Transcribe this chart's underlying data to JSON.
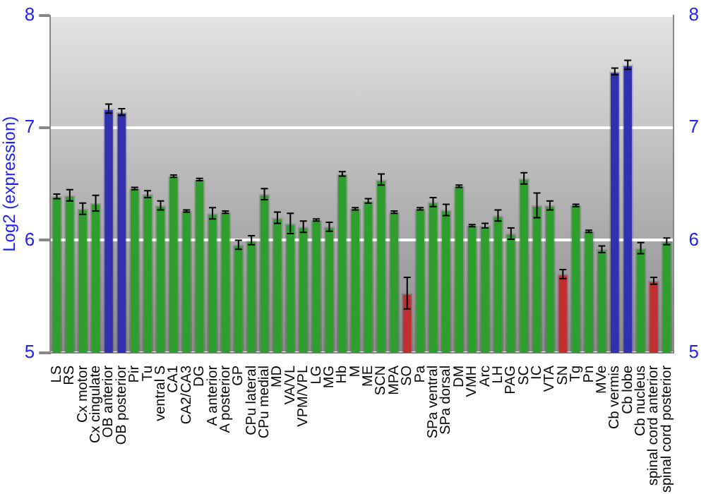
{
  "chart_data": {
    "type": "bar",
    "ylabel": "Log2 (expression)",
    "categories": [
      "LS",
      "RS",
      "Cx motor",
      "Cx cingulate",
      "OB anterior",
      "OB posterior",
      "Pir",
      "Tu",
      "ventral S",
      "CA1",
      "CA2/CA3",
      "DG",
      "A anterior",
      "A posterior",
      "GP",
      "CPu lateral",
      "CPu medial",
      "MD",
      "VA/VL",
      "VPM/VPL",
      "LG",
      "MG",
      "Hb",
      "M",
      "ME",
      "SCN",
      "MPA",
      "SO",
      "Pa",
      "SPa ventral",
      "SPa dorsal",
      "DM",
      "VMH",
      "Arc",
      "LH",
      "PAG",
      "SC",
      "IC",
      "VTA",
      "SN",
      "Tg",
      "Pn",
      "MVe",
      "Cb vermis",
      "Cb lobe",
      "Cb nucleus",
      "spinal cord anterior",
      "spinal cord posterior"
    ],
    "values": [
      6.39,
      6.4,
      6.28,
      6.33,
      7.17,
      7.14,
      6.46,
      6.41,
      6.31,
      6.57,
      6.26,
      6.54,
      6.24,
      6.25,
      5.96,
      6.0,
      6.41,
      6.2,
      6.15,
      6.12,
      6.18,
      6.12,
      6.59,
      6.28,
      6.35,
      6.54,
      6.25,
      5.53,
      6.28,
      6.34,
      6.27,
      6.48,
      6.13,
      6.13,
      6.22,
      6.06,
      6.55,
      6.31,
      6.31,
      5.7,
      6.31,
      6.08,
      5.92,
      7.5,
      7.56,
      5.93,
      5.64,
      5.99
    ],
    "errors": [
      0.02,
      0.05,
      0.05,
      0.07,
      0.04,
      0.03,
      0.01,
      0.03,
      0.04,
      0.01,
      0.01,
      0.01,
      0.05,
      0.01,
      0.04,
      0.04,
      0.05,
      0.05,
      0.09,
      0.05,
      0.01,
      0.04,
      0.02,
      0.01,
      0.02,
      0.05,
      0.01,
      0.14,
      0.01,
      0.04,
      0.05,
      0.01,
      0.01,
      0.02,
      0.05,
      0.05,
      0.05,
      0.11,
      0.04,
      0.04,
      0.01,
      0.01,
      0.03,
      0.03,
      0.04,
      0.05,
      0.03,
      0.03
    ],
    "colors": [
      "#2e9e2e",
      "#2e9e2e",
      "#2e9e2e",
      "#2e9e2e",
      "#3030b0",
      "#3030b0",
      "#2e9e2e",
      "#2e9e2e",
      "#2e9e2e",
      "#2e9e2e",
      "#2e9e2e",
      "#2e9e2e",
      "#2e9e2e",
      "#2e9e2e",
      "#2e9e2e",
      "#2e9e2e",
      "#2e9e2e",
      "#2e9e2e",
      "#2e9e2e",
      "#2e9e2e",
      "#2e9e2e",
      "#2e9e2e",
      "#2e9e2e",
      "#2e9e2e",
      "#2e9e2e",
      "#2e9e2e",
      "#2e9e2e",
      "#c03030",
      "#2e9e2e",
      "#2e9e2e",
      "#2e9e2e",
      "#2e9e2e",
      "#2e9e2e",
      "#2e9e2e",
      "#2e9e2e",
      "#2e9e2e",
      "#2e9e2e",
      "#2e9e2e",
      "#2e9e2e",
      "#c03030",
      "#2e9e2e",
      "#2e9e2e",
      "#2e9e2e",
      "#3030b0",
      "#3030b0",
      "#2e9e2e",
      "#c03030",
      "#2e9e2e"
    ],
    "ylim": [
      5,
      8
    ],
    "yticks": [
      5,
      6,
      7,
      8
    ],
    "y2lim": [
      5,
      8
    ],
    "y2ticks": [
      5,
      6,
      7,
      8
    ],
    "grid": "y",
    "legend": false
  }
}
